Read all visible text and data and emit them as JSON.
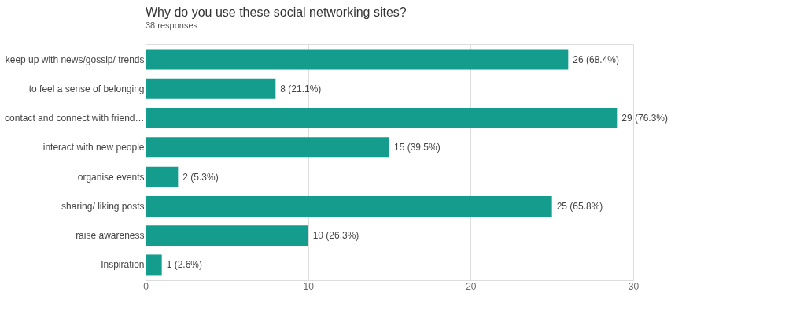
{
  "chart_data": {
    "type": "bar",
    "orientation": "horizontal",
    "title": "Why do you use these social networking sites?",
    "subtitle": "38 responses",
    "categories": [
      "keep up with news/gossip/ trends",
      "to feel a sense of belonging",
      "contact and connect with friend…",
      "interact with new people",
      "organise events",
      "sharing/ liking posts",
      "raise awareness",
      "Inspiration"
    ],
    "values": [
      26,
      8,
      29,
      15,
      2,
      25,
      10,
      1
    ],
    "value_labels": [
      "26 (68.4%)",
      "8 (21.1%)",
      "29 (76.3%)",
      "15 (39.5%)",
      "2 (5.3%)",
      "25 (65.8%)",
      "10 (26.3%)",
      "1 (2.6%)"
    ],
    "color": "#149c8c",
    "xlim": [
      0,
      30
    ],
    "xticks": [
      0,
      10,
      20,
      30
    ],
    "grid": "x"
  }
}
